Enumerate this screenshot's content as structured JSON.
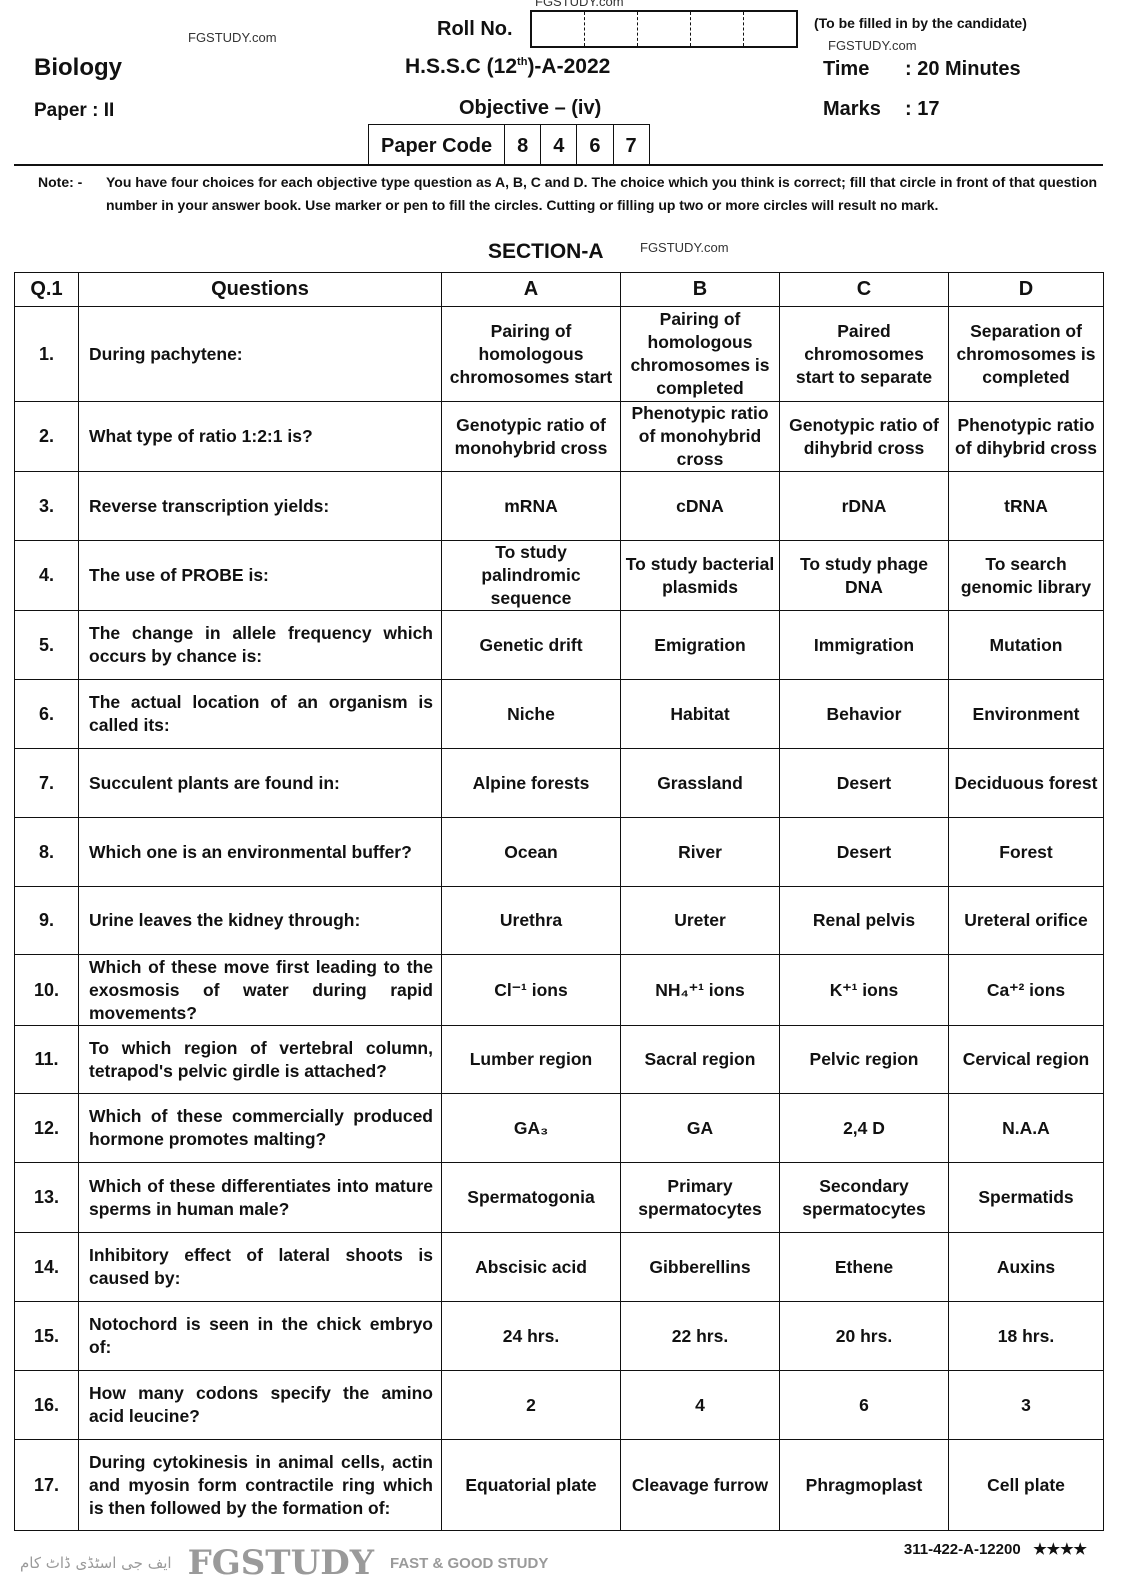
{
  "watermarks": {
    "site_top": "FGSTUDY.com",
    "site_left": "FGSTUDY.com",
    "site_right": "FGSTUDY.com",
    "site_section": "FGSTUDY.com",
    "logo": "FGSTUDY",
    "logo_tagline": "FAST & GOOD STUDY",
    "logo_urdu": "ایف جی اسٹڈی ڈاٹ کام"
  },
  "header": {
    "roll_label": "Roll No.",
    "roll_note": "(To be filled in by the candidate)",
    "subject": "Biology",
    "exam_prefix": "H.S.S.C (12",
    "exam_sup": "th",
    "exam_suffix": ")-A-2022",
    "time_label": "Time",
    "time_value": ": 20 Minutes",
    "paper": "Paper : II",
    "objective": "Objective – (iv)",
    "marks_label": "Marks",
    "marks_value": ": 17",
    "paper_code_label": "Paper Code",
    "paper_code_digits": [
      "8",
      "4",
      "6",
      "7"
    ]
  },
  "note": {
    "label": "Note: -",
    "text": "You have four choices for each objective type question as A, B, C and D. The choice which you think is correct; fill that circle in front of that question number in your answer book. Use marker or pen to fill the circles. Cutting or filling up two or more circles will result no mark."
  },
  "section_title": "SECTION-A",
  "table": {
    "headers": [
      "Q.1",
      "Questions",
      "A",
      "B",
      "C",
      "D"
    ],
    "rows": [
      {
        "n": "1.",
        "q": "During pachytene:",
        "a": "Pairing of homologous chromosomes start",
        "b": "Pairing of homologous chromosomes is completed",
        "c": "Paired chromosomes start to separate",
        "d": "Separation of chromosomes is completed"
      },
      {
        "n": "2.",
        "q": "What type of ratio 1:2:1 is?",
        "a": "Genotypic ratio of monohybrid cross",
        "b": "Phenotypic ratio of monohybrid cross",
        "c": "Genotypic ratio of dihybrid cross",
        "d": "Phenotypic ratio of dihybrid cross"
      },
      {
        "n": "3.",
        "q": "Reverse transcription yields:",
        "a": "mRNA",
        "b": "cDNA",
        "c": "rDNA",
        "d": "tRNA"
      },
      {
        "n": "4.",
        "q": "The use of PROBE is:",
        "a": "To study palindromic sequence",
        "b": "To study bacterial plasmids",
        "c": "To study phage DNA",
        "d": "To search genomic library"
      },
      {
        "n": "5.",
        "q": "The change in allele frequency which occurs by chance is:",
        "a": "Genetic drift",
        "b": "Emigration",
        "c": "Immigration",
        "d": "Mutation"
      },
      {
        "n": "6.",
        "q": "The actual location of an organism is called its:",
        "a": "Niche",
        "b": "Habitat",
        "c": "Behavior",
        "d": "Environment"
      },
      {
        "n": "7.",
        "q": "Succulent plants are found in:",
        "a": "Alpine forests",
        "b": "Grassland",
        "c": "Desert",
        "d": "Deciduous forest"
      },
      {
        "n": "8.",
        "q": "Which one is an environmental buffer?",
        "a": "Ocean",
        "b": "River",
        "c": "Desert",
        "d": "Forest"
      },
      {
        "n": "9.",
        "q": "Urine leaves the kidney through:",
        "a": "Urethra",
        "b": "Ureter",
        "c": "Renal pelvis",
        "d": "Ureteral orifice"
      },
      {
        "n": "10.",
        "q": "Which of these move first leading to the exosmosis of water during rapid movements?",
        "a": "Cl⁻¹ ions",
        "b": "NH₄⁺¹ ions",
        "c": "K⁺¹ ions",
        "d": "Ca⁺² ions"
      },
      {
        "n": "11.",
        "q": "To which region of vertebral column, tetrapod's pelvic girdle is attached?",
        "a": "Lumber region",
        "b": "Sacral region",
        "c": "Pelvic region",
        "d": "Cervical region"
      },
      {
        "n": "12.",
        "q": "Which of these commercially produced hormone promotes malting?",
        "a": "GA₃",
        "b": "GA",
        "c": "2,4 D",
        "d": "N.A.A"
      },
      {
        "n": "13.",
        "q": "Which of these differentiates into mature sperms in human male?",
        "a": "Spermatogonia",
        "b": "Primary spermatocytes",
        "c": "Secondary spermatocytes",
        "d": "Spermatids"
      },
      {
        "n": "14.",
        "q": "Inhibitory effect of lateral shoots is caused by:",
        "a": "Abscisic acid",
        "b": "Gibberellins",
        "c": "Ethene",
        "d": "Auxins"
      },
      {
        "n": "15.",
        "q": "Notochord is seen in the chick embryo of:",
        "a": "24 hrs.",
        "b": "22 hrs.",
        "c": "20 hrs.",
        "d": "18 hrs."
      },
      {
        "n": "16.",
        "q": "How many codons specify the amino acid leucine?",
        "a": "2",
        "b": "4",
        "c": "6",
        "d": "3"
      },
      {
        "n": "17.",
        "q": "During cytokinesis in animal cells, actin and myosin form contractile ring which is then followed by the formation of:",
        "a": "Equatorial plate",
        "b": "Cleavage furrow",
        "c": "Phragmoplast",
        "d": "Cell plate"
      }
    ]
  },
  "footer": {
    "code": "311-422-A-12200",
    "stars": "★★★★"
  }
}
